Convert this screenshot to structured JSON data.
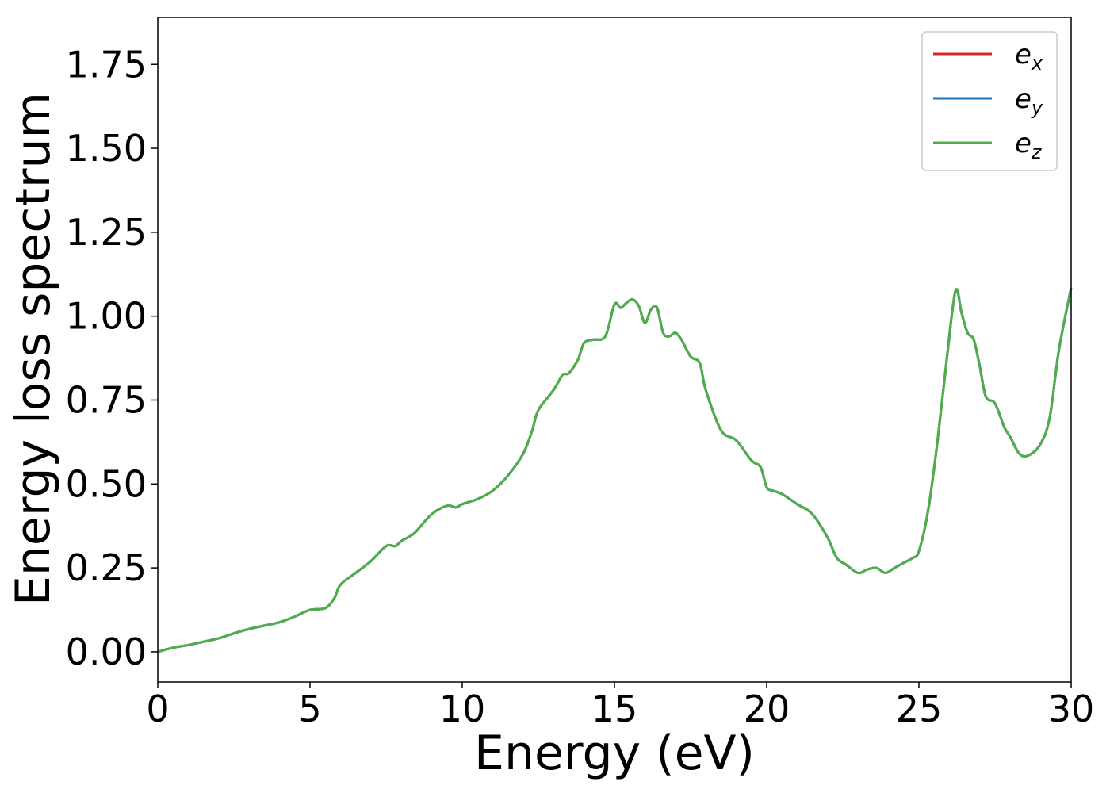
{
  "chart_data": {
    "type": "line",
    "title": "",
    "xlabel": "Energy (eV)",
    "ylabel": "Energy loss spectrum",
    "xlim": [
      0,
      30
    ],
    "ylim": [
      -0.09,
      1.89
    ],
    "xticks": [
      0,
      5,
      10,
      15,
      20,
      25,
      30
    ],
    "xtick_labels": [
      "0",
      "5",
      "10",
      "15",
      "20",
      "25",
      "30"
    ],
    "yticks": [
      0.0,
      0.25,
      0.5,
      0.75,
      1.0,
      1.25,
      1.5,
      1.75
    ],
    "ytick_labels": [
      "0.00",
      "0.25",
      "0.50",
      "0.75",
      "1.00",
      "1.25",
      "1.50",
      "1.75"
    ],
    "grid": false,
    "legend_position": "top-right",
    "x": [
      0,
      0.5,
      1.0,
      1.5,
      2.0,
      2.5,
      3.0,
      3.5,
      4.0,
      4.5,
      5.0,
      5.5,
      5.8,
      6.0,
      6.5,
      7.0,
      7.5,
      7.8,
      8.0,
      8.3,
      8.5,
      9.0,
      9.5,
      9.8,
      10.0,
      10.5,
      11.0,
      11.5,
      12.0,
      12.3,
      12.5,
      13.0,
      13.3,
      13.5,
      13.8,
      14.0,
      14.3,
      14.7,
      15.0,
      15.2,
      15.4,
      15.6,
      15.8,
      16.0,
      16.2,
      16.4,
      16.6,
      16.8,
      17.0,
      17.2,
      17.5,
      17.8,
      18.0,
      18.5,
      19.0,
      19.5,
      19.8,
      20.0,
      20.2,
      20.5,
      21.0,
      21.5,
      22.0,
      22.3,
      22.6,
      23.0,
      23.3,
      23.6,
      23.9,
      24.2,
      24.5,
      24.8,
      25.0,
      25.3,
      25.6,
      25.9,
      26.2,
      26.4,
      26.6,
      26.8,
      27.0,
      27.2,
      27.5,
      27.8,
      28.0,
      28.3,
      28.6,
      29.0,
      29.3,
      29.6,
      30.0
    ],
    "series": [
      {
        "name": "e_x",
        "label_base": "e",
        "label_sub": "x",
        "color": "#d62728",
        "values": [
          0.0,
          0.012,
          0.02,
          0.03,
          0.04,
          0.055,
          0.068,
          0.078,
          0.088,
          0.105,
          0.125,
          0.13,
          0.16,
          0.2,
          0.235,
          0.27,
          0.315,
          0.315,
          0.33,
          0.345,
          0.36,
          0.41,
          0.435,
          0.43,
          0.44,
          0.455,
          0.48,
          0.525,
          0.59,
          0.66,
          0.72,
          0.78,
          0.825,
          0.83,
          0.87,
          0.92,
          0.93,
          0.94,
          1.035,
          1.025,
          1.04,
          1.05,
          1.03,
          0.98,
          1.02,
          1.025,
          0.95,
          0.94,
          0.95,
          0.93,
          0.88,
          0.86,
          0.78,
          0.66,
          0.63,
          0.57,
          0.55,
          0.49,
          0.48,
          0.47,
          0.44,
          0.41,
          0.34,
          0.28,
          0.26,
          0.235,
          0.245,
          0.25,
          0.235,
          0.25,
          0.265,
          0.28,
          0.3,
          0.42,
          0.62,
          0.86,
          1.075,
          1.01,
          0.95,
          0.93,
          0.85,
          0.76,
          0.74,
          0.67,
          0.64,
          0.59,
          0.585,
          0.62,
          0.7,
          0.9,
          1.085
        ]
      },
      {
        "name": "e_y",
        "label_base": "e",
        "label_sub": "y",
        "color": "#1f77b4",
        "values": [
          0.0,
          0.012,
          0.02,
          0.03,
          0.04,
          0.055,
          0.068,
          0.078,
          0.088,
          0.105,
          0.125,
          0.13,
          0.16,
          0.2,
          0.235,
          0.27,
          0.315,
          0.315,
          0.33,
          0.345,
          0.36,
          0.41,
          0.435,
          0.43,
          0.44,
          0.455,
          0.48,
          0.525,
          0.59,
          0.66,
          0.72,
          0.78,
          0.825,
          0.83,
          0.87,
          0.92,
          0.93,
          0.94,
          1.035,
          1.025,
          1.04,
          1.05,
          1.03,
          0.98,
          1.02,
          1.025,
          0.95,
          0.94,
          0.95,
          0.93,
          0.88,
          0.86,
          0.78,
          0.66,
          0.63,
          0.57,
          0.55,
          0.49,
          0.48,
          0.47,
          0.44,
          0.41,
          0.34,
          0.28,
          0.26,
          0.235,
          0.245,
          0.25,
          0.235,
          0.25,
          0.265,
          0.28,
          0.3,
          0.42,
          0.62,
          0.86,
          1.075,
          1.01,
          0.95,
          0.93,
          0.85,
          0.76,
          0.74,
          0.67,
          0.64,
          0.59,
          0.585,
          0.62,
          0.7,
          0.9,
          1.085
        ]
      },
      {
        "name": "e_z",
        "label_base": "e",
        "label_sub": "z",
        "color": "#4daf4a",
        "values": [
          0.0,
          0.012,
          0.02,
          0.03,
          0.04,
          0.055,
          0.068,
          0.078,
          0.088,
          0.105,
          0.125,
          0.13,
          0.16,
          0.2,
          0.235,
          0.27,
          0.315,
          0.315,
          0.33,
          0.345,
          0.36,
          0.41,
          0.435,
          0.43,
          0.44,
          0.455,
          0.48,
          0.525,
          0.59,
          0.66,
          0.72,
          0.78,
          0.825,
          0.83,
          0.87,
          0.92,
          0.93,
          0.94,
          1.035,
          1.025,
          1.04,
          1.05,
          1.03,
          0.98,
          1.02,
          1.025,
          0.95,
          0.94,
          0.95,
          0.93,
          0.88,
          0.86,
          0.78,
          0.66,
          0.63,
          0.57,
          0.55,
          0.49,
          0.48,
          0.47,
          0.44,
          0.41,
          0.34,
          0.28,
          0.26,
          0.235,
          0.245,
          0.25,
          0.235,
          0.25,
          0.265,
          0.28,
          0.3,
          0.42,
          0.62,
          0.86,
          1.075,
          1.01,
          0.95,
          0.93,
          0.85,
          0.76,
          0.74,
          0.67,
          0.64,
          0.59,
          0.585,
          0.62,
          0.7,
          0.9,
          1.085
        ]
      }
    ]
  }
}
